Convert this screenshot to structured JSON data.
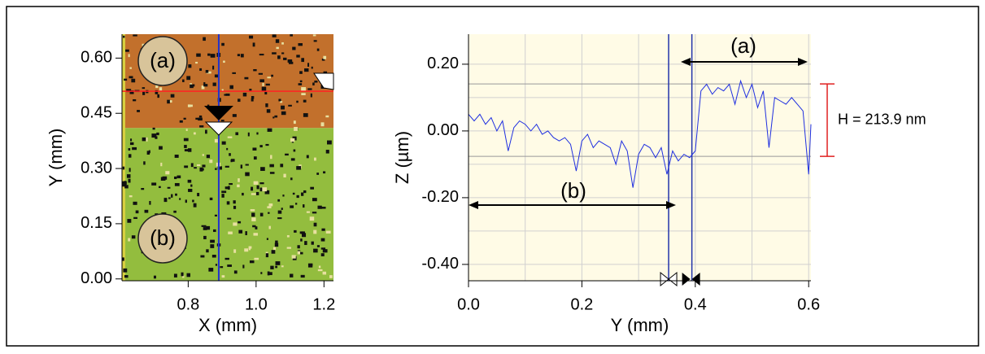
{
  "chart_data": [
    {
      "type": "heatmap",
      "x_label": "X (mm)",
      "y_label": "Y (mm)",
      "xlim": [
        0.605,
        1.228
      ],
      "ylim": [
        -0.005,
        0.665
      ],
      "xticks": [
        0.8,
        {
          "value": 1.0,
          "label": "1.0"
        },
        1.2
      ],
      "yticks": [
        {
          "value": 0,
          "label": "0.00"
        },
        0.15,
        {
          "value": 0.3,
          "label": "0.30"
        },
        0.45,
        {
          "value": 0.6,
          "label": "0.60"
        }
      ],
      "boundary_y": 0.41,
      "cursor_x": 0.89,
      "cursor_y": 0.51,
      "colors": {
        "upper": "#c2702c",
        "lower": "#93bd3e",
        "cursor_x": "#2233cc",
        "cursor_y": "#ff2222"
      },
      "annotations": [
        "(a)",
        "(b)"
      ]
    },
    {
      "type": "line",
      "x_label": "Y (mm)",
      "y_label": "Z (µm)",
      "xlim": [
        0,
        0.604
      ],
      "ylim": [
        -0.449,
        0.29
      ],
      "xticks": [
        {
          "value": 0,
          "label": "0.0"
        },
        0.2,
        0.4,
        0.6
      ],
      "yticks": [
        {
          "value": -0.4,
          "label": "-0.40"
        },
        {
          "value": -0.2,
          "label": "-0.20"
        },
        {
          "value": 0,
          "label": "0.00"
        },
        {
          "value": 0.2,
          "label": "0.20"
        }
      ],
      "xgrid": [
        0,
        0.1,
        0.2,
        0.3,
        0.4,
        0.5,
        0.6
      ],
      "ygrid": [
        -0.4,
        -0.3,
        -0.2,
        -0.1,
        0,
        0.1,
        0.2
      ],
      "grid": true,
      "cursor_x": [
        0.353,
        0.394
      ],
      "hlines": [
        0.141,
        -0.076
      ],
      "series": [
        {
          "color": "#1f2fe0",
          "x": [
            0,
            0.01,
            0.02,
            0.03,
            0.04,
            0.05,
            0.06,
            0.07,
            0.08,
            0.09,
            0.1,
            0.11,
            0.12,
            0.13,
            0.14,
            0.15,
            0.16,
            0.17,
            0.18,
            0.19,
            0.2,
            0.21,
            0.22,
            0.23,
            0.24,
            0.25,
            0.26,
            0.27,
            0.28,
            0.29,
            0.3,
            0.31,
            0.32,
            0.33,
            0.34,
            0.35,
            0.36,
            0.37,
            0.38,
            0.39,
            0.4,
            0.41,
            0.42,
            0.43,
            0.44,
            0.45,
            0.46,
            0.47,
            0.48,
            0.49,
            0.5,
            0.51,
            0.52,
            0.53,
            0.54,
            0.55,
            0.56,
            0.57,
            0.58,
            0.59,
            0.6,
            0.604
          ],
          "values": [
            0.05,
            0.03,
            0.05,
            0.02,
            0.04,
            0.0,
            0.03,
            -0.06,
            0.01,
            0.03,
            0.02,
            0.0,
            0.02,
            -0.01,
            0.0,
            -0.02,
            -0.03,
            -0.02,
            -0.04,
            -0.12,
            -0.03,
            -0.01,
            -0.05,
            -0.03,
            -0.04,
            -0.05,
            -0.1,
            -0.03,
            -0.06,
            -0.17,
            -0.07,
            -0.04,
            -0.05,
            -0.08,
            -0.05,
            -0.13,
            -0.06,
            -0.09,
            -0.07,
            -0.08,
            -0.06,
            0.12,
            0.14,
            0.11,
            0.13,
            0.12,
            0.14,
            0.08,
            0.15,
            0.1,
            0.14,
            0.07,
            0.12,
            -0.05,
            0.1,
            0.09,
            0.08,
            0.1,
            0.08,
            0.06,
            -0.13,
            0.02
          ]
        }
      ],
      "annotations": [
        "(a)",
        "(b)",
        "H = 213.9 nm"
      ]
    }
  ]
}
